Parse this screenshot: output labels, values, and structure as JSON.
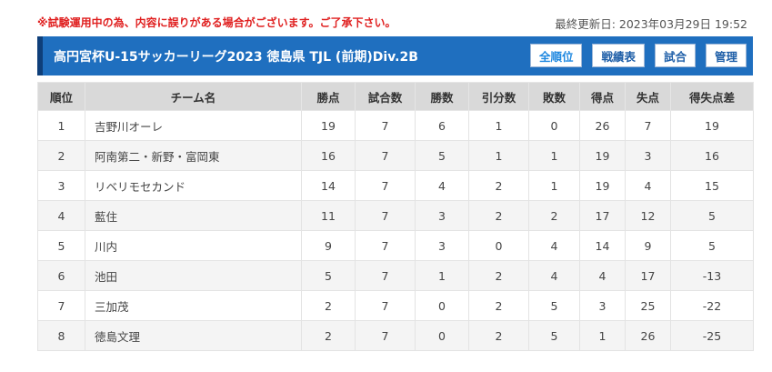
{
  "notice": "※試験運用中の為、内容に誤りがある場合がございます。ご了承下さい。",
  "last_updated": "最終更新日: 2023年03月29日 19:52",
  "title": "高円宮杯U-15サッカーリーグ2023 徳島県 TJL (前期)Div.2B",
  "buttons": {
    "ranking": "全順位",
    "record": "戦績表",
    "match": "試合",
    "admin": "管理"
  },
  "columns": {
    "rank": "順位",
    "team": "チーム名",
    "points": "勝点",
    "played": "試合数",
    "wins": "勝数",
    "draws": "引分数",
    "losses": "敗数",
    "goals_for": "得点",
    "goals_against": "失点",
    "goal_diff": "得失点差"
  },
  "rows": [
    {
      "rank": "1",
      "team": "吉野川オーレ",
      "points": "19",
      "played": "7",
      "wins": "6",
      "draws": "1",
      "losses": "0",
      "goals_for": "26",
      "goals_against": "7",
      "goal_diff": "19"
    },
    {
      "rank": "2",
      "team": "阿南第二・新野・富岡東",
      "points": "16",
      "played": "7",
      "wins": "5",
      "draws": "1",
      "losses": "1",
      "goals_for": "19",
      "goals_against": "3",
      "goal_diff": "16"
    },
    {
      "rank": "3",
      "team": "リベリモセカンド",
      "points": "14",
      "played": "7",
      "wins": "4",
      "draws": "2",
      "losses": "1",
      "goals_for": "19",
      "goals_against": "4",
      "goal_diff": "15"
    },
    {
      "rank": "4",
      "team": "藍住",
      "points": "11",
      "played": "7",
      "wins": "3",
      "draws": "2",
      "losses": "2",
      "goals_for": "17",
      "goals_against": "12",
      "goal_diff": "5"
    },
    {
      "rank": "5",
      "team": "川内",
      "points": "9",
      "played": "7",
      "wins": "3",
      "draws": "0",
      "losses": "4",
      "goals_for": "14",
      "goals_against": "9",
      "goal_diff": "5"
    },
    {
      "rank": "6",
      "team": "池田",
      "points": "5",
      "played": "7",
      "wins": "1",
      "draws": "2",
      "losses": "4",
      "goals_for": "4",
      "goals_against": "17",
      "goal_diff": "-13"
    },
    {
      "rank": "7",
      "team": "三加茂",
      "points": "2",
      "played": "7",
      "wins": "0",
      "draws": "2",
      "losses": "5",
      "goals_for": "3",
      "goals_against": "25",
      "goal_diff": "-22"
    },
    {
      "rank": "8",
      "team": "徳島文理",
      "points": "2",
      "played": "7",
      "wins": "0",
      "draws": "2",
      "losses": "5",
      "goals_for": "1",
      "goals_against": "26",
      "goal_diff": "-25"
    }
  ]
}
